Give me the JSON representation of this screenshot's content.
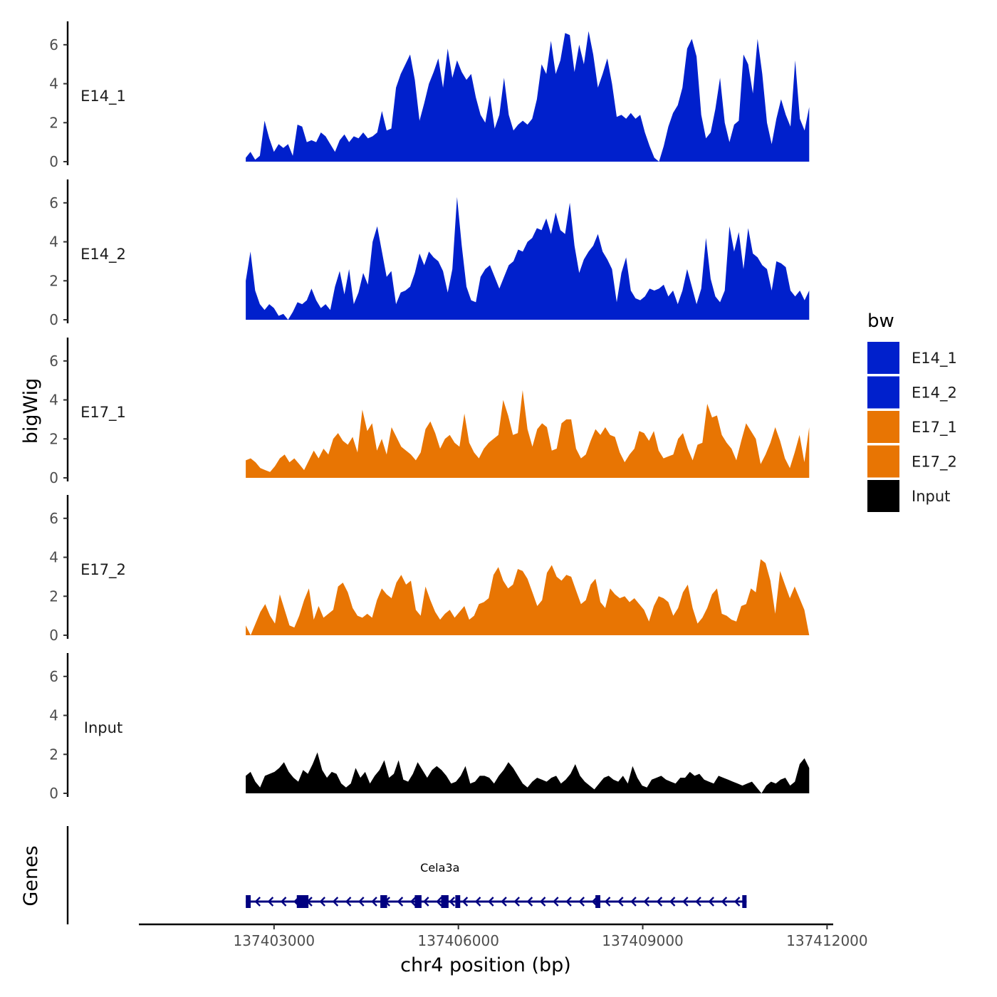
{
  "chart_data": {
    "type": "area",
    "xlabel": "chr4 position (bp)",
    "ylabel": "bigWig",
    "genes_label": "Genes",
    "xlim": [
      137400800,
      137412100
    ],
    "ylim": [
      0,
      7.2
    ],
    "x_ticks": [
      137403000,
      137406000,
      137409000,
      137412000
    ],
    "x_tick_labels": [
      "137403000",
      "137406000",
      "137409000",
      "137412000"
    ],
    "y_ticks": [
      0,
      2,
      4,
      6
    ],
    "y_tick_labels": [
      "0",
      "2",
      "4",
      "6"
    ],
    "data_start": 137402540,
    "data_end": 137411710,
    "legend": {
      "title": "bw",
      "entries": [
        {
          "label": "E14_1",
          "color": "#0020cc"
        },
        {
          "label": "E14_2",
          "color": "#0020cc"
        },
        {
          "label": "E17_1",
          "color": "#e87503"
        },
        {
          "label": "E17_2",
          "color": "#e87503"
        },
        {
          "label": "Input",
          "color": "#000000"
        }
      ]
    },
    "series": [
      {
        "name": "E14_1",
        "color": "#0020cc",
        "values": [
          0.2,
          0.5,
          0.1,
          0.3,
          2.1,
          1.2,
          0.5,
          0.9,
          0.7,
          0.9,
          0.3,
          1.9,
          1.8,
          1.0,
          1.1,
          1.0,
          1.5,
          1.3,
          0.9,
          0.5,
          1.1,
          1.4,
          1.0,
          1.3,
          1.2,
          1.5,
          1.2,
          1.3,
          1.5,
          2.6,
          1.6,
          1.7,
          3.8,
          4.5,
          5.0,
          5.5,
          4.2,
          2.1,
          3.0,
          4.0,
          4.6,
          5.3,
          3.8,
          5.8,
          4.3,
          5.2,
          4.6,
          4.2,
          4.5,
          3.3,
          2.4,
          2.0,
          3.4,
          1.7,
          2.4,
          4.3,
          2.4,
          1.6,
          1.9,
          2.1,
          1.9,
          2.2,
          3.2,
          5.0,
          4.5,
          6.2,
          4.5,
          5.2,
          6.6,
          6.5,
          4.6,
          6.0,
          5.0,
          6.7,
          5.5,
          3.8,
          4.5,
          5.3,
          4.0,
          2.3,
          2.4,
          2.2,
          2.5,
          2.2,
          2.4,
          1.5,
          0.8,
          0.2,
          0.0,
          0.8,
          1.8,
          2.5,
          2.9,
          3.8,
          5.8,
          6.3,
          5.4,
          2.4,
          1.2,
          1.5,
          2.7,
          4.3,
          2.0,
          1.0,
          1.9,
          2.1,
          5.5,
          5.0,
          3.5,
          6.3,
          4.5,
          2.0,
          0.9,
          2.2,
          3.2,
          2.4,
          1.8,
          5.2,
          2.2,
          1.6,
          2.8
        ]
      },
      {
        "name": "E14_2",
        "color": "#0020cc",
        "values": [
          2.0,
          3.5,
          1.5,
          0.8,
          0.5,
          0.8,
          0.6,
          0.2,
          0.3,
          0.0,
          0.4,
          0.9,
          0.8,
          1.0,
          1.6,
          1.0,
          0.6,
          0.8,
          0.5,
          1.7,
          2.5,
          1.3,
          2.6,
          0.8,
          1.4,
          2.4,
          1.8,
          4.0,
          4.8,
          3.5,
          2.2,
          2.5,
          0.8,
          1.4,
          1.5,
          1.7,
          2.4,
          3.4,
          2.8,
          3.5,
          3.2,
          3.0,
          2.5,
          1.4,
          2.6,
          6.3,
          3.8,
          1.7,
          1.0,
          0.9,
          2.2,
          2.6,
          2.8,
          2.2,
          1.6,
          2.2,
          2.8,
          3.0,
          3.6,
          3.5,
          4.0,
          4.2,
          4.7,
          4.6,
          5.2,
          4.4,
          5.5,
          4.6,
          4.4,
          6.0,
          3.8,
          2.4,
          3.1,
          3.5,
          3.8,
          4.4,
          3.5,
          3.1,
          2.6,
          0.9,
          2.4,
          3.2,
          1.5,
          1.1,
          1.0,
          1.2,
          1.6,
          1.5,
          1.6,
          1.8,
          1.2,
          1.5,
          0.8,
          1.5,
          2.6,
          1.7,
          0.8,
          1.6,
          4.2,
          2.1,
          1.2,
          0.9,
          1.5,
          4.8,
          3.5,
          4.5,
          2.6,
          4.7,
          3.4,
          3.2,
          2.8,
          2.6,
          1.5,
          3.0,
          2.9,
          2.7,
          1.5,
          1.2,
          1.5,
          1.0,
          1.5
        ]
      },
      {
        "name": "E17_1",
        "color": "#e87503",
        "values": [
          0.9,
          1.0,
          0.8,
          0.5,
          0.4,
          0.3,
          0.6,
          1.0,
          1.2,
          0.8,
          1.0,
          0.7,
          0.4,
          0.9,
          1.4,
          1.0,
          1.5,
          1.2,
          2.0,
          2.3,
          1.9,
          1.7,
          2.1,
          1.3,
          3.5,
          2.4,
          2.8,
          1.4,
          2.0,
          1.2,
          2.6,
          2.1,
          1.6,
          1.4,
          1.2,
          0.9,
          1.3,
          2.5,
          2.9,
          2.3,
          1.5,
          2.0,
          2.2,
          1.8,
          1.6,
          3.3,
          1.8,
          1.3,
          1.0,
          1.5,
          1.8,
          2.0,
          2.2,
          4.0,
          3.2,
          2.2,
          2.3,
          4.5,
          2.5,
          1.6,
          2.5,
          2.8,
          2.6,
          1.4,
          1.5,
          2.8,
          3.0,
          3.0,
          1.5,
          1.0,
          1.2,
          1.9,
          2.5,
          2.2,
          2.6,
          2.2,
          2.1,
          1.3,
          0.8,
          1.2,
          1.5,
          2.4,
          2.3,
          1.9,
          2.4,
          1.4,
          1.0,
          1.1,
          1.2,
          2.0,
          2.3,
          1.5,
          0.9,
          1.7,
          1.8,
          3.8,
          3.1,
          3.2,
          2.2,
          1.8,
          1.5,
          0.9,
          1.9,
          2.8,
          2.4,
          2.0,
          0.7,
          1.2,
          1.8,
          2.6,
          1.9,
          1.0,
          0.5,
          1.3,
          2.2,
          0.8,
          2.6
        ]
      },
      {
        "name": "E17_2",
        "color": "#e87503",
        "values": [
          0.5,
          0.0,
          0.6,
          1.2,
          1.6,
          1.0,
          0.6,
          2.1,
          1.3,
          0.5,
          0.4,
          1.0,
          1.8,
          2.4,
          0.8,
          1.5,
          0.9,
          1.1,
          1.3,
          2.5,
          2.7,
          2.2,
          1.4,
          1.0,
          0.9,
          1.1,
          0.9,
          1.8,
          2.4,
          2.1,
          1.9,
          2.7,
          3.1,
          2.6,
          2.8,
          1.3,
          1.0,
          2.5,
          1.8,
          1.2,
          0.8,
          1.1,
          1.3,
          0.9,
          1.2,
          1.5,
          0.8,
          1.0,
          1.6,
          1.7,
          1.9,
          3.1,
          3.5,
          2.8,
          2.4,
          2.6,
          3.4,
          3.3,
          2.9,
          2.2,
          1.5,
          1.8,
          3.2,
          3.6,
          3.0,
          2.8,
          3.1,
          3.0,
          2.3,
          1.6,
          1.8,
          2.6,
          2.9,
          1.7,
          1.4,
          2.4,
          2.1,
          1.9,
          2.0,
          1.7,
          1.9,
          1.6,
          1.3,
          0.7,
          1.5,
          2.0,
          1.9,
          1.7,
          1.0,
          1.4,
          2.2,
          2.6,
          1.4,
          0.6,
          0.9,
          1.4,
          2.1,
          2.4,
          1.1,
          1.0,
          0.8,
          0.7,
          1.5,
          1.6,
          2.4,
          2.2,
          3.9,
          3.7,
          2.8,
          1.1,
          3.3,
          2.6,
          1.9,
          2.5,
          1.9,
          1.3,
          0.0
        ]
      },
      {
        "name": "Input",
        "color": "#000000",
        "values": [
          0.9,
          1.1,
          0.6,
          0.3,
          0.9,
          1.0,
          1.1,
          1.3,
          1.6,
          1.1,
          0.8,
          0.6,
          1.2,
          1.0,
          1.5,
          2.1,
          1.2,
          0.8,
          1.1,
          1.0,
          0.5,
          0.3,
          0.5,
          1.3,
          0.8,
          1.1,
          0.5,
          0.9,
          1.2,
          1.7,
          0.8,
          1.0,
          1.7,
          0.7,
          0.6,
          1.0,
          1.6,
          1.2,
          0.8,
          1.2,
          1.4,
          1.2,
          0.9,
          0.5,
          0.6,
          0.9,
          1.4,
          0.5,
          0.6,
          0.9,
          0.9,
          0.8,
          0.5,
          0.9,
          1.2,
          1.6,
          1.3,
          0.9,
          0.5,
          0.3,
          0.6,
          0.8,
          0.7,
          0.6,
          0.8,
          0.9,
          0.5,
          0.7,
          1.0,
          1.5,
          0.9,
          0.6,
          0.4,
          0.2,
          0.5,
          0.8,
          0.9,
          0.7,
          0.6,
          0.9,
          0.5,
          1.4,
          0.8,
          0.4,
          0.3,
          0.7,
          0.8,
          0.9,
          0.7,
          0.6,
          0.5,
          0.8,
          0.8,
          1.1,
          0.9,
          1.0,
          0.7,
          0.6,
          0.5,
          0.9,
          0.8,
          0.7,
          0.6,
          0.5,
          0.4,
          0.5,
          0.6,
          0.3,
          0.0,
          0.4,
          0.6,
          0.5,
          0.7,
          0.8,
          0.4,
          0.6,
          1.5,
          1.8,
          1.3
        ]
      }
    ],
    "gene": {
      "name": "Cela3a",
      "start": 137402540,
      "end": 137410690,
      "strand": "-",
      "color": "#000080",
      "exons": [
        [
          137402540,
          137402620
        ],
        [
          137403370,
          137403560
        ],
        [
          137404730,
          137404840
        ],
        [
          137405290,
          137405400
        ],
        [
          137405720,
          137405840
        ],
        [
          137405950,
          137406030
        ],
        [
          137408230,
          137408310
        ],
        [
          137410620,
          137410690
        ]
      ]
    }
  }
}
